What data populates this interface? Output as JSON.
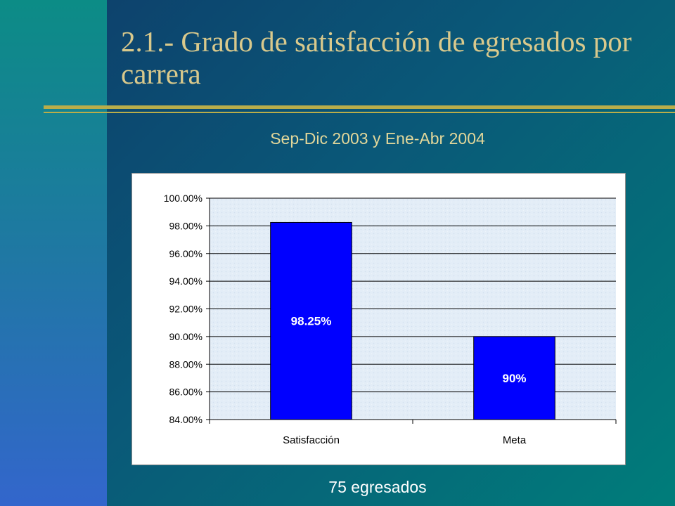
{
  "slide": {
    "title": "2.1.- Grado de satisfacción de egresados por carrera",
    "subtitle": "Sep-Dic 2003 y Ene-Abr 2004",
    "footer": "75 egresados"
  },
  "colors": {
    "bar": "#0000ff",
    "title": "#d9c98c",
    "accent_rule": "#b9ad4a"
  },
  "chart_data": {
    "type": "bar",
    "title": "",
    "xlabel": "",
    "ylabel": "",
    "categories": [
      "Satisfacción",
      "Meta"
    ],
    "values": [
      98.25,
      90
    ],
    "data_labels": [
      "98.25%",
      "90%"
    ],
    "ylim": [
      84,
      100
    ],
    "yticks": [
      84,
      86,
      88,
      90,
      92,
      94,
      96,
      98,
      100
    ],
    "ytick_labels": [
      "84.00%",
      "86.00%",
      "88.00%",
      "90.00%",
      "92.00%",
      "94.00%",
      "96.00%",
      "98.00%",
      "100.00%"
    ],
    "grid": true,
    "legend": "none"
  }
}
